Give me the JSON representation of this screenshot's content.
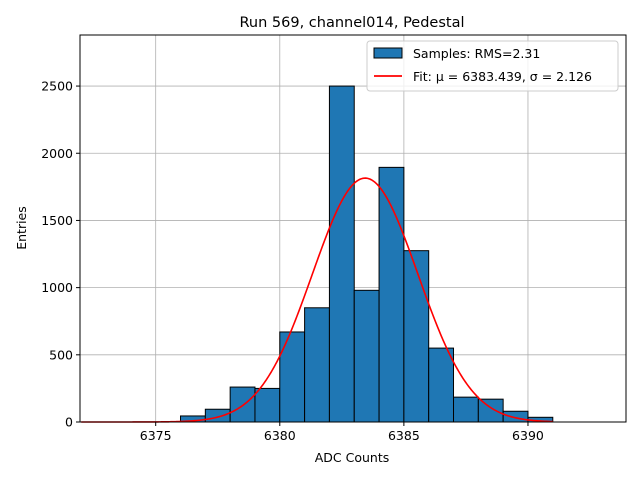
{
  "chart_data": {
    "type": "bar",
    "title": "Run 569, channel014, Pedestal",
    "xlabel": "ADC Counts",
    "ylabel": "Entries",
    "xlim": [
      6371.95,
      6393.95
    ],
    "ylim": [
      0,
      2880
    ],
    "grid": true,
    "legend_position": "top-right",
    "x_ticks": [
      6375,
      6380,
      6385,
      6390
    ],
    "y_ticks": [
      0,
      500,
      1000,
      1500,
      2000,
      2500
    ],
    "bin_width": 1,
    "bins": [
      {
        "left": 6376,
        "value": 45
      },
      {
        "left": 6377,
        "value": 95
      },
      {
        "left": 6378,
        "value": 260
      },
      {
        "left": 6379,
        "value": 250
      },
      {
        "left": 6380,
        "value": 670
      },
      {
        "left": 6381,
        "value": 850
      },
      {
        "left": 6382,
        "value": 2500
      },
      {
        "left": 6383,
        "value": 980
      },
      {
        "left": 6384,
        "value": 1895
      },
      {
        "left": 6385,
        "value": 1275
      },
      {
        "left": 6386,
        "value": 550
      },
      {
        "left": 6387,
        "value": 185
      },
      {
        "left": 6388,
        "value": 170
      },
      {
        "left": 6389,
        "value": 80
      },
      {
        "left": 6390,
        "value": 35
      }
    ],
    "fit": {
      "mu": 6383.439,
      "sigma": 2.126,
      "amplitude": 1815,
      "x_range": [
        6372,
        6391
      ]
    },
    "legend": [
      {
        "label": "Samples: RMS=2.31",
        "kind": "patch"
      },
      {
        "label": "Fit: μ = 6383.439, σ = 2.126",
        "kind": "line"
      }
    ]
  },
  "colors": {
    "bar_fill": "#1f77b4",
    "bar_edge": "#000000",
    "fit_line": "#ff0000",
    "grid": "#b0b0b0",
    "axis": "#000000"
  }
}
